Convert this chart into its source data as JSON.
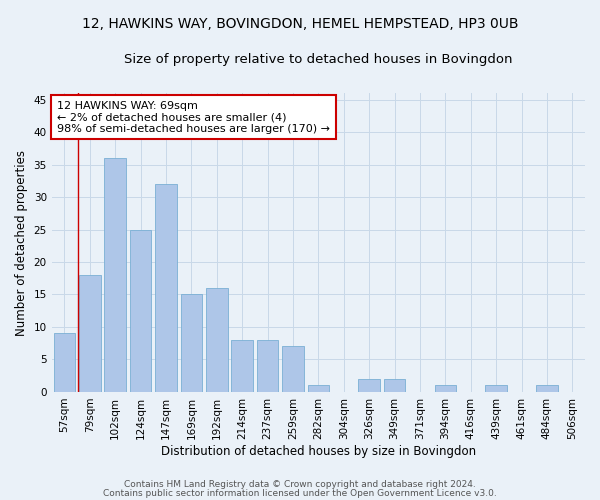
{
  "title": "12, HAWKINS WAY, BOVINGDON, HEMEL HEMPSTEAD, HP3 0UB",
  "subtitle": "Size of property relative to detached houses in Bovingdon",
  "xlabel": "Distribution of detached houses by size in Bovingdon",
  "ylabel": "Number of detached properties",
  "categories": [
    "57sqm",
    "79sqm",
    "102sqm",
    "124sqm",
    "147sqm",
    "169sqm",
    "192sqm",
    "214sqm",
    "237sqm",
    "259sqm",
    "282sqm",
    "304sqm",
    "326sqm",
    "349sqm",
    "371sqm",
    "394sqm",
    "416sqm",
    "439sqm",
    "461sqm",
    "484sqm",
    "506sqm"
  ],
  "values": [
    9,
    18,
    36,
    25,
    32,
    15,
    16,
    8,
    8,
    7,
    1,
    0,
    2,
    2,
    0,
    1,
    0,
    1,
    0,
    1,
    0
  ],
  "bar_color": "#aec6e8",
  "bar_edge_color": "#7aafd4",
  "annotation_text": "12 HAWKINS WAY: 69sqm\n← 2% of detached houses are smaller (4)\n98% of semi-detached houses are larger (170) →",
  "annotation_box_color": "#ffffff",
  "annotation_box_edge_color": "#cc0000",
  "vline_color": "#cc0000",
  "ylim": [
    0,
    46
  ],
  "yticks": [
    0,
    5,
    10,
    15,
    20,
    25,
    30,
    35,
    40,
    45
  ],
  "grid_color": "#c8d8e8",
  "background_color": "#eaf1f8",
  "title_fontsize": 10,
  "subtitle_fontsize": 9.5,
  "axis_label_fontsize": 8.5,
  "tick_fontsize": 7.5,
  "annotation_fontsize": 8,
  "footer_line1": "Contains HM Land Registry data © Crown copyright and database right 2024.",
  "footer_line2": "Contains public sector information licensed under the Open Government Licence v3.0.",
  "footer_fontsize": 6.5
}
